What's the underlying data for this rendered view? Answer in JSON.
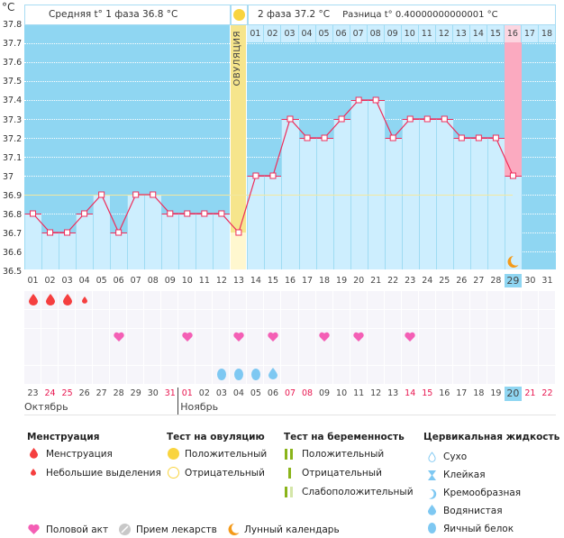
{
  "y_unit": "°C",
  "y_ticks": [
    "37.8",
    "37.7",
    "37.6",
    "37.5",
    "37.4",
    "37.3",
    "37.2",
    "37.1",
    "37",
    "36.9",
    "36.8",
    "36.7",
    "36.6",
    "36.5"
  ],
  "header": {
    "phase1": "Средняя t° 1 фаза 36.8 °C",
    "phase2": "2 фаза 37.2 °C",
    "diff": "Разница t° 0.40000000000001 °C",
    "ovulation_label": "ОВУЛЯЦИЯ"
  },
  "chart_data": {
    "type": "line",
    "days": [
      "01",
      "02",
      "03",
      "04",
      "05",
      "06",
      "07",
      "08",
      "09",
      "10",
      "11",
      "12",
      "13",
      "14",
      "15",
      "16",
      "17",
      "18",
      "19",
      "20",
      "21",
      "22",
      "23",
      "24",
      "25",
      "26",
      "27",
      "28",
      "29",
      "30",
      "31"
    ],
    "temps": [
      36.8,
      36.7,
      36.7,
      36.8,
      36.9,
      36.7,
      36.9,
      36.9,
      36.8,
      36.8,
      36.8,
      36.8,
      36.7,
      37.0,
      37.0,
      37.3,
      37.2,
      37.2,
      37.3,
      37.4,
      37.4,
      37.2,
      37.3,
      37.3,
      37.3,
      37.2,
      37.2,
      37.2,
      37.0,
      null,
      null
    ],
    "ylim": [
      36.5,
      37.8
    ],
    "cover_line": 36.9,
    "ovulation_day": 13,
    "today_day": 29,
    "luteal_days": [
      "01",
      "02",
      "03",
      "04",
      "05",
      "06",
      "07",
      "08",
      "09",
      "10",
      "11",
      "12",
      "13",
      "14",
      "15",
      "16",
      "17",
      "18"
    ],
    "colors": {
      "bar": "#cdeefe",
      "above": "#8fd6f2",
      "line": "#ee2d5b",
      "ovulation": "#f6e58c",
      "today": "#fbaac0"
    }
  },
  "dates": [
    {
      "d": "23",
      "w": false
    },
    {
      "d": "24",
      "w": true
    },
    {
      "d": "25",
      "w": true
    },
    {
      "d": "26",
      "w": false
    },
    {
      "d": "27",
      "w": false
    },
    {
      "d": "28",
      "w": false
    },
    {
      "d": "29",
      "w": false
    },
    {
      "d": "30",
      "w": false
    },
    {
      "d": "31",
      "w": true
    },
    {
      "d": "01",
      "w": true
    },
    {
      "d": "02",
      "w": false
    },
    {
      "d": "03",
      "w": false
    },
    {
      "d": "04",
      "w": false
    },
    {
      "d": "05",
      "w": false
    },
    {
      "d": "06",
      "w": false
    },
    {
      "d": "07",
      "w": true
    },
    {
      "d": "08",
      "w": true
    },
    {
      "d": "09",
      "w": false
    },
    {
      "d": "10",
      "w": false
    },
    {
      "d": "11",
      "w": false
    },
    {
      "d": "12",
      "w": false
    },
    {
      "d": "13",
      "w": false
    },
    {
      "d": "14",
      "w": true
    },
    {
      "d": "15",
      "w": true
    },
    {
      "d": "16",
      "w": false
    },
    {
      "d": "17",
      "w": false
    },
    {
      "d": "18",
      "w": false
    },
    {
      "d": "19",
      "w": false
    },
    {
      "d": "20",
      "w": false
    },
    {
      "d": "21",
      "w": true
    },
    {
      "d": "22",
      "w": true
    }
  ],
  "months": [
    {
      "label": "Октябрь"
    },
    {
      "label": "Ноябрь"
    }
  ],
  "markers": {
    "menstruation": [
      1,
      2,
      3
    ],
    "spotting": [
      4
    ],
    "intercourse": [
      6,
      10,
      13,
      15,
      18,
      20,
      23
    ],
    "egg_white": [
      12,
      13,
      14
    ],
    "watery": [
      15
    ],
    "moon": [
      29
    ]
  },
  "legend": {
    "menstruation": {
      "title": "Менструация",
      "items": [
        "Менструация",
        "Небольшие выделения"
      ]
    },
    "ovulation_test": {
      "title": "Тест на овуляцию",
      "items": [
        "Положительный",
        "Отрицательный"
      ]
    },
    "pregnancy_test": {
      "title": "Тест на беременность",
      "items": [
        "Положительный",
        "Отрицательный",
        "Слабоположительный"
      ]
    },
    "cervical": {
      "title": "Цервикальная жидкость",
      "items": [
        "Сухо",
        "Клейкая",
        "Кремообразная",
        "Водянистая",
        "Яичный белок"
      ]
    },
    "other": [
      "Половой акт",
      "Прием лекарств",
      "Лунный календарь"
    ]
  }
}
